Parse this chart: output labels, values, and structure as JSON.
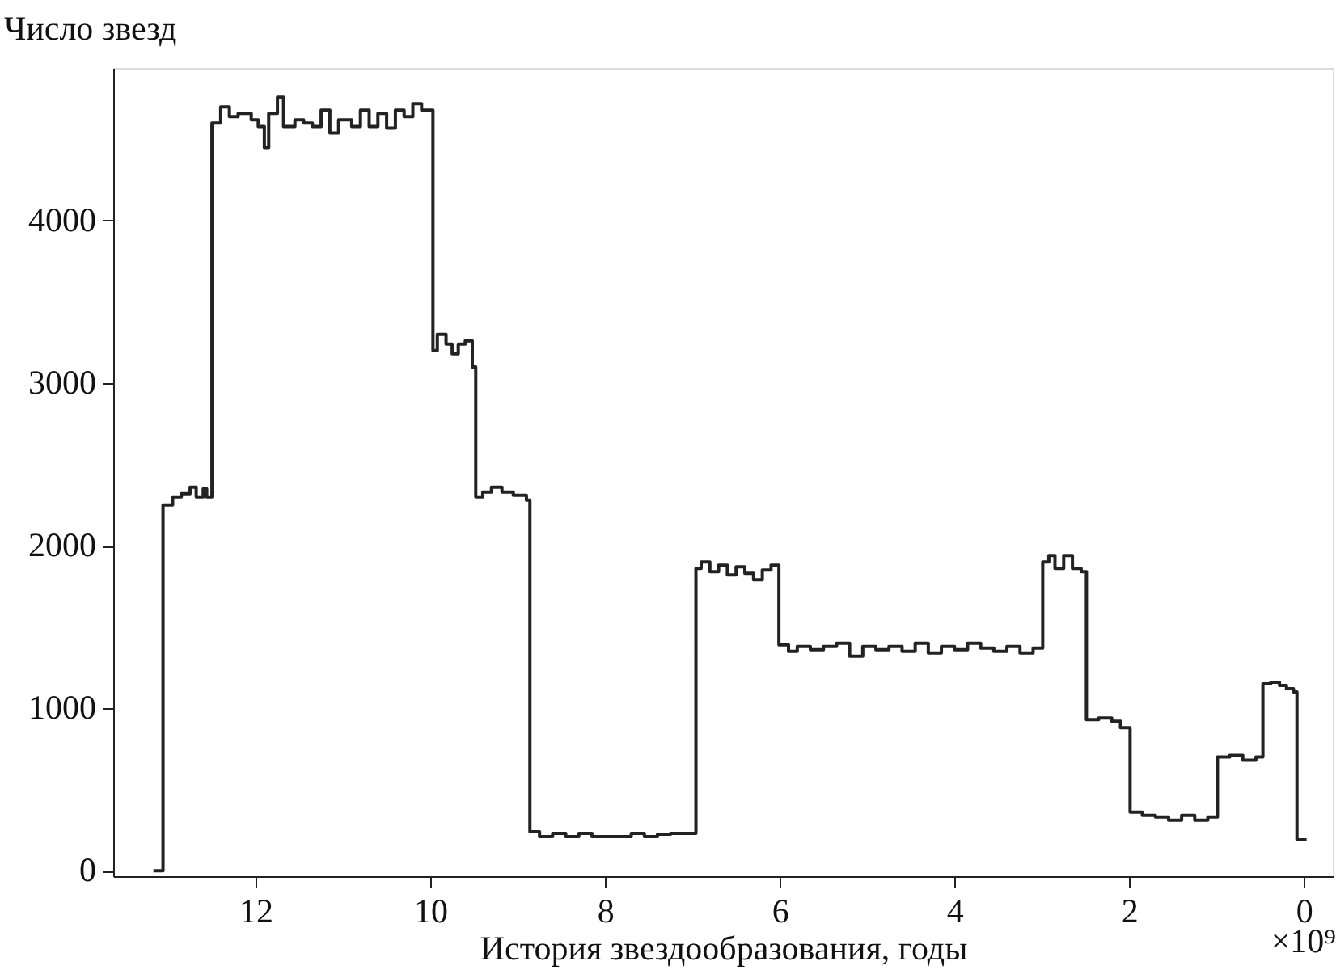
{
  "chart_data": {
    "type": "step",
    "xlabel": "История звездообразования, годы",
    "ylabel": "Число звезд",
    "annotations": [
      "×10⁹"
    ],
    "x": [
      13.17,
      13.06,
      12.95,
      12.85,
      12.75,
      12.68,
      12.6,
      12.56,
      12.5,
      12.4,
      12.3,
      12.2,
      12.05,
      11.97,
      11.9,
      11.85,
      11.75,
      11.68,
      11.55,
      11.45,
      11.35,
      11.25,
      11.15,
      11.05,
      10.9,
      10.8,
      10.7,
      10.6,
      10.5,
      10.4,
      10.3,
      10.2,
      10.1,
      9.97,
      9.92,
      9.82,
      9.75,
      9.68,
      9.6,
      9.52,
      9.48,
      9.4,
      9.3,
      9.18,
      9.05,
      8.9,
      8.86,
      8.75,
      8.6,
      8.45,
      8.3,
      8.15,
      8.0,
      7.85,
      7.7,
      7.55,
      7.4,
      7.25,
      7.1,
      6.96,
      6.9,
      6.8,
      6.7,
      6.6,
      6.5,
      6.4,
      6.3,
      6.2,
      6.1,
      6.01,
      5.9,
      5.8,
      5.65,
      5.5,
      5.35,
      5.2,
      5.05,
      4.9,
      4.75,
      4.6,
      4.45,
      4.3,
      4.15,
      4.0,
      3.85,
      3.7,
      3.55,
      3.4,
      3.25,
      3.1,
      2.99,
      2.92,
      2.85,
      2.75,
      2.65,
      2.55,
      2.49,
      2.35,
      2.2,
      2.1,
      1.99,
      1.85,
      1.7,
      1.55,
      1.4,
      1.25,
      1.1,
      0.99,
      0.85,
      0.7,
      0.55,
      0.47,
      0.38,
      0.28,
      0.2,
      0.12,
      0.08,
      -0.03
    ],
    "series": [
      {
        "color": "#222222",
        "values": [
          0,
          2250,
          2300,
          2320,
          2360,
          2300,
          2350,
          2300,
          4600,
          4700,
          4640,
          4660,
          4620,
          4580,
          4450,
          4660,
          4760,
          4580,
          4620,
          4600,
          4580,
          4680,
          4540,
          4620,
          4580,
          4680,
          4580,
          4660,
          4570,
          4680,
          4640,
          4720,
          4680,
          3200,
          3300,
          3240,
          3180,
          3240,
          3260,
          3100,
          2300,
          2330,
          2360,
          2330,
          2310,
          2280,
          240,
          210,
          230,
          210,
          230,
          210,
          210,
          210,
          230,
          210,
          225,
          230,
          230,
          1860,
          1900,
          1840,
          1880,
          1820,
          1870,
          1830,
          1790,
          1850,
          1880,
          1390,
          1350,
          1380,
          1360,
          1380,
          1400,
          1320,
          1380,
          1360,
          1380,
          1350,
          1400,
          1340,
          1380,
          1360,
          1400,
          1370,
          1350,
          1380,
          1340,
          1370,
          1900,
          1940,
          1860,
          1940,
          1860,
          1840,
          930,
          940,
          920,
          880,
          360,
          340,
          330,
          310,
          340,
          310,
          330,
          700,
          710,
          680,
          700,
          1150,
          1160,
          1140,
          1120,
          1100,
          190,
          190
        ]
      }
    ],
    "xlim": [
      13.63,
      -0.33
    ],
    "xticks": [
      12,
      10,
      8,
      6,
      4,
      2,
      0
    ],
    "ylim": [
      -34,
      4940
    ],
    "yticks": [
      0,
      1000,
      2000,
      3000,
      4000
    ],
    "grid": false,
    "marker": "none",
    "line_style": "solid"
  }
}
